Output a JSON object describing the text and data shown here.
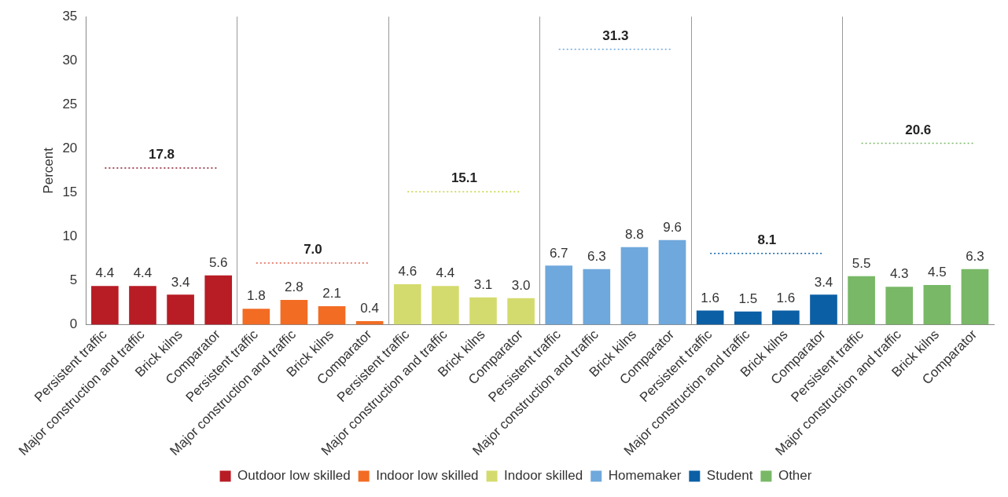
{
  "chart_data": {
    "type": "bar",
    "ylabel": "Percent",
    "ylim": [
      0,
      35
    ],
    "yticks": [
      0,
      5,
      10,
      15,
      20,
      25,
      30,
      35
    ],
    "grid": false,
    "legend": "bottom",
    "categories": [
      "Persistent traffic",
      "Major construction and traffic",
      "Brick kilns",
      "Comparator",
      "Persistent traffic",
      "Major construction and traffic",
      "Brick kilns",
      "Comparator",
      "Persistent traffic",
      "Major construction and traffic",
      "Brick kilns",
      "Comparator",
      "Persistent traffic",
      "Major construction and traffic",
      "Brick kilns",
      "Comparator",
      "Persistent traffic",
      "Major construction and traffic",
      "Brick kilns",
      "Comparator",
      "Persistent traffic",
      "Major construction and traffic",
      "Brick kilns",
      "Comparator"
    ],
    "series": [
      {
        "name": "Outdoor low skilled",
        "color": "#b81c25",
        "values": [
          4.4,
          4.4,
          3.4,
          5.6,
          null,
          null,
          null,
          null,
          null,
          null,
          null,
          null,
          null,
          null,
          null,
          null,
          null,
          null,
          null,
          null,
          null,
          null,
          null,
          null
        ],
        "value_labels": [
          "4.4",
          "4.4",
          "3.4",
          "5.6",
          null,
          null,
          null,
          null,
          null,
          null,
          null,
          null,
          null,
          null,
          null,
          null,
          null,
          null,
          null,
          null,
          null,
          null,
          null,
          null
        ]
      },
      {
        "name": "Indoor low skilled",
        "color": "#f26c24",
        "values": [
          null,
          null,
          null,
          null,
          1.8,
          2.8,
          2.1,
          0.4,
          null,
          null,
          null,
          null,
          null,
          null,
          null,
          null,
          null,
          null,
          null,
          null,
          null,
          null,
          null,
          null
        ],
        "value_labels": [
          null,
          null,
          null,
          null,
          "1.8",
          "2.8",
          "2.1",
          "0.4",
          null,
          null,
          null,
          null,
          null,
          null,
          null,
          null,
          null,
          null,
          null,
          null,
          null,
          null,
          null,
          null
        ]
      },
      {
        "name": "Indoor skilled",
        "color": "#d4db6e",
        "values": [
          null,
          null,
          null,
          null,
          null,
          null,
          null,
          null,
          4.6,
          4.4,
          3.1,
          3.0,
          null,
          null,
          null,
          null,
          null,
          null,
          null,
          null,
          null,
          null,
          null,
          null
        ],
        "value_labels": [
          null,
          null,
          null,
          null,
          null,
          null,
          null,
          null,
          "4.6",
          "4.4",
          "3.1",
          "3.0",
          null,
          null,
          null,
          null,
          null,
          null,
          null,
          null,
          null,
          null,
          null,
          null
        ]
      },
      {
        "name": "Homemaker",
        "color": "#6fa8dc",
        "values": [
          null,
          null,
          null,
          null,
          null,
          null,
          null,
          null,
          null,
          null,
          null,
          null,
          6.7,
          6.3,
          8.8,
          9.6,
          null,
          null,
          null,
          null,
          null,
          null,
          null,
          null
        ],
        "value_labels": [
          null,
          null,
          null,
          null,
          null,
          null,
          null,
          null,
          null,
          null,
          null,
          null,
          "6.7",
          "6.3",
          "8.8",
          "9.6",
          null,
          null,
          null,
          null,
          null,
          null,
          null,
          null
        ]
      },
      {
        "name": "Student",
        "color": "#0b5fa5",
        "values": [
          null,
          null,
          null,
          null,
          null,
          null,
          null,
          null,
          null,
          null,
          null,
          null,
          null,
          null,
          null,
          null,
          1.6,
          1.5,
          1.6,
          3.4,
          null,
          null,
          null,
          null
        ],
        "value_labels": [
          null,
          null,
          null,
          null,
          null,
          null,
          null,
          null,
          null,
          null,
          null,
          null,
          null,
          null,
          null,
          null,
          "1.6",
          "1.5",
          "1.6",
          "3.4",
          null,
          null,
          null,
          null
        ]
      },
      {
        "name": "Other",
        "color": "#78b866",
        "values": [
          null,
          null,
          null,
          null,
          null,
          null,
          null,
          null,
          null,
          null,
          null,
          null,
          null,
          null,
          null,
          null,
          null,
          null,
          null,
          null,
          5.5,
          4.3,
          4.5,
          6.3
        ],
        "value_labels": [
          null,
          null,
          null,
          null,
          null,
          null,
          null,
          null,
          null,
          null,
          null,
          null,
          null,
          null,
          null,
          null,
          null,
          null,
          null,
          null,
          "5.5",
          "4.3",
          "4.5",
          "6.3"
        ]
      },
      {
        "type": "line",
        "color": "#8b1a2a",
        "line_style": "dotted",
        "marker": "none",
        "values": [
          17.8,
          17.8,
          17.8,
          17.8,
          null,
          null,
          null,
          null,
          null,
          null,
          null,
          null,
          null,
          null,
          null,
          null,
          null,
          null,
          null,
          null,
          null,
          null,
          null,
          null
        ],
        "value_labels": [
          null,
          "17.8",
          null,
          null,
          null,
          null,
          null,
          null,
          null,
          null,
          null,
          null,
          null,
          null,
          null,
          null,
          null,
          null,
          null,
          null,
          null,
          null,
          null,
          null
        ]
      },
      {
        "type": "line",
        "color": "#e0604a",
        "line_style": "dotted",
        "marker": "none",
        "values": [
          null,
          null,
          null,
          null,
          7.0,
          7.0,
          7.0,
          7.0,
          null,
          null,
          null,
          null,
          null,
          null,
          null,
          null,
          null,
          null,
          null,
          null,
          null,
          null,
          null,
          null
        ],
        "value_labels": [
          null,
          null,
          null,
          null,
          null,
          "7.0",
          null,
          null,
          null,
          null,
          null,
          null,
          null,
          null,
          null,
          null,
          null,
          null,
          null,
          null,
          null,
          null,
          null,
          null
        ]
      },
      {
        "type": "line",
        "color": "#c8d23a",
        "line_style": "dotted",
        "marker": "none",
        "values": [
          null,
          null,
          null,
          null,
          null,
          null,
          null,
          null,
          15.1,
          15.1,
          15.1,
          15.1,
          null,
          null,
          null,
          null,
          null,
          null,
          null,
          null,
          null,
          null,
          null,
          null
        ],
        "value_labels": [
          null,
          null,
          null,
          null,
          null,
          null,
          null,
          null,
          null,
          "15.1",
          null,
          null,
          null,
          null,
          null,
          null,
          null,
          null,
          null,
          null,
          null,
          null,
          null,
          null
        ]
      },
      {
        "type": "line",
        "color": "#6fa8dc",
        "line_style": "dotted",
        "marker": "none",
        "values": [
          null,
          null,
          null,
          null,
          null,
          null,
          null,
          null,
          null,
          null,
          null,
          null,
          31.3,
          31.3,
          31.3,
          31.3,
          null,
          null,
          null,
          null,
          null,
          null,
          null,
          null
        ],
        "value_labels": [
          null,
          null,
          null,
          null,
          null,
          null,
          null,
          null,
          null,
          null,
          null,
          null,
          null,
          "31.3",
          null,
          null,
          null,
          null,
          null,
          null,
          null,
          null,
          null,
          null
        ]
      },
      {
        "type": "line",
        "color": "#0b5fa5",
        "line_style": "dotted",
        "marker": "none",
        "values": [
          null,
          null,
          null,
          null,
          null,
          null,
          null,
          null,
          null,
          null,
          null,
          null,
          null,
          null,
          null,
          null,
          8.1,
          8.1,
          8.1,
          8.1,
          null,
          null,
          null,
          null
        ],
        "value_labels": [
          null,
          null,
          null,
          null,
          null,
          null,
          null,
          null,
          null,
          null,
          null,
          null,
          null,
          null,
          null,
          null,
          null,
          "8.1",
          null,
          null,
          null,
          null,
          null,
          null
        ]
      },
      {
        "type": "line",
        "color": "#78b866",
        "line_style": "dotted",
        "marker": "none",
        "values": [
          null,
          null,
          null,
          null,
          null,
          null,
          null,
          null,
          null,
          null,
          null,
          null,
          null,
          null,
          null,
          null,
          null,
          null,
          null,
          null,
          20.6,
          20.6,
          20.6,
          20.6
        ],
        "value_labels": [
          null,
          null,
          null,
          null,
          null,
          null,
          null,
          null,
          null,
          null,
          null,
          null,
          null,
          null,
          null,
          null,
          null,
          null,
          null,
          null,
          null,
          "20.6",
          null,
          null
        ]
      }
    ]
  }
}
